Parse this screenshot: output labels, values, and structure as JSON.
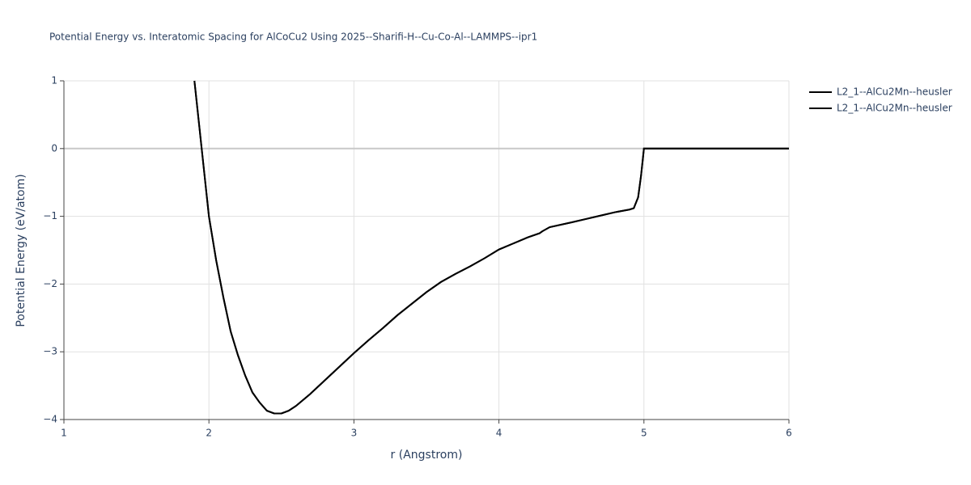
{
  "chart_data": {
    "type": "line",
    "title": "Potential Energy vs. Interatomic Spacing for AlCoCu2 Using 2025--Sharifi-H--Cu-Co-Al--LAMMPS--ipr1",
    "x_label": "r (Angstrom)",
    "y_label": "Potential Energy (eV/atom)",
    "x": [
      1.9,
      1.95,
      2.0,
      2.05,
      2.1,
      2.15,
      2.2,
      2.25,
      2.3,
      2.35,
      2.4,
      2.45,
      2.5,
      2.55,
      2.6,
      2.7,
      2.8,
      2.9,
      3.0,
      3.1,
      3.2,
      3.3,
      3.4,
      3.5,
      3.6,
      3.7,
      3.8,
      3.9,
      4.0,
      4.1,
      4.2,
      4.28,
      4.3,
      4.35,
      4.5,
      4.6,
      4.7,
      4.8,
      4.9,
      4.93,
      4.96,
      4.98,
      5.0,
      6.0
    ],
    "series": [
      {
        "name": "L2_1--AlCu2Mn--heusler",
        "color": "#000000",
        "values": [
          1.0,
          0.0,
          -1.0,
          -1.65,
          -2.2,
          -2.7,
          -3.05,
          -3.35,
          -3.6,
          -3.75,
          -3.87,
          -3.91,
          -3.91,
          -3.87,
          -3.8,
          -3.62,
          -3.42,
          -3.22,
          -3.02,
          -2.83,
          -2.65,
          -2.46,
          -2.29,
          -2.12,
          -1.97,
          -1.85,
          -1.74,
          -1.62,
          -1.49,
          -1.4,
          -1.31,
          -1.25,
          -1.22,
          -1.16,
          -1.09,
          -1.04,
          -0.99,
          -0.94,
          -0.9,
          -0.88,
          -0.72,
          -0.4,
          0.0,
          0.0
        ]
      },
      {
        "name": "L2_1--AlCu2Mn--heusler",
        "color": "#000000",
        "values": [
          1.0,
          0.0,
          -1.0,
          -1.65,
          -2.2,
          -2.7,
          -3.05,
          -3.35,
          -3.6,
          -3.75,
          -3.87,
          -3.91,
          -3.91,
          -3.87,
          -3.8,
          -3.62,
          -3.42,
          -3.22,
          -3.02,
          -2.83,
          -2.65,
          -2.46,
          -2.29,
          -2.12,
          -1.97,
          -1.85,
          -1.74,
          -1.62,
          -1.49,
          -1.4,
          -1.31,
          -1.25,
          -1.22,
          -1.16,
          -1.09,
          -1.04,
          -0.99,
          -0.94,
          -0.9,
          -0.88,
          -0.72,
          -0.4,
          0.0,
          0.0
        ]
      }
    ],
    "xlim": [
      1,
      6
    ],
    "xticks": [
      1,
      2,
      3,
      4,
      5,
      6
    ],
    "ylim": [
      -4,
      1
    ],
    "yticks": [
      {
        "value": -4,
        "label": "−4"
      },
      {
        "value": -3,
        "label": "−3"
      },
      {
        "value": -2,
        "label": "−2"
      },
      {
        "value": -1,
        "label": "−1"
      },
      0,
      1
    ],
    "grid": true,
    "legend": "right"
  }
}
